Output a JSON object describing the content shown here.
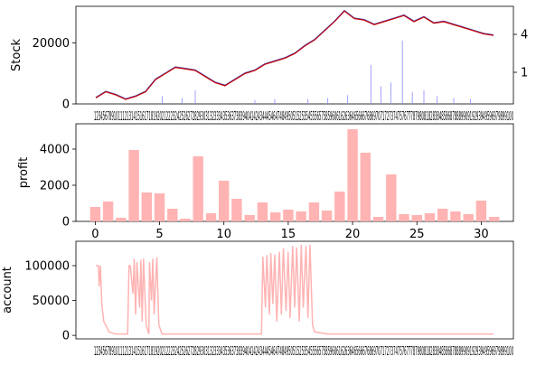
{
  "chart_data": [
    {
      "type": "line",
      "ylabel": "Stock",
      "ylim": [
        0,
        32000
      ],
      "yticks": [
        0,
        20000
      ],
      "y2ticks": [
        "4",
        "1"
      ],
      "x_tick_text": "123456789101112131415161718192021222324252627282930313233343536373839404142434445464748495051525354555657585960616263646566676869707172737475767778798081828384858687888990919293949596979899100",
      "series": [
        {
          "color": "#cc0000",
          "x": [
            0,
            30,
            60,
            90,
            120,
            150,
            180,
            210,
            240,
            270,
            300,
            330,
            360,
            390,
            420,
            450,
            480,
            510,
            540,
            570,
            600,
            630,
            660,
            690,
            720,
            750,
            780,
            810,
            840,
            870,
            900,
            930,
            960,
            990,
            1020,
            1050,
            1080,
            1110,
            1140,
            1170,
            1200
          ],
          "values": [
            2000,
            4000,
            3000,
            1500,
            2500,
            4000,
            8000,
            10000,
            12000,
            11500,
            11000,
            9000,
            7000,
            6000,
            8000,
            10000,
            11000,
            13000,
            14000,
            15000,
            16500,
            19000,
            21000,
            24000,
            27000,
            30500,
            28000,
            27500,
            26000,
            27000,
            28000,
            29000,
            27000,
            28500,
            26500,
            27000,
            26000,
            25000,
            24000,
            23000,
            22500
          ]
        }
      ],
      "volume_color": "#8888ff",
      "volume_ylim": [
        0,
        100
      ],
      "volume": [
        {
          "x": 200,
          "v": 8
        },
        {
          "x": 260,
          "v": 6
        },
        {
          "x": 300,
          "v": 14
        },
        {
          "x": 480,
          "v": 4
        },
        {
          "x": 540,
          "v": 5
        },
        {
          "x": 640,
          "v": 5
        },
        {
          "x": 700,
          "v": 6
        },
        {
          "x": 760,
          "v": 9
        },
        {
          "x": 830,
          "v": 40
        },
        {
          "x": 860,
          "v": 18
        },
        {
          "x": 890,
          "v": 22
        },
        {
          "x": 925,
          "v": 65
        },
        {
          "x": 955,
          "v": 12
        },
        {
          "x": 990,
          "v": 14
        },
        {
          "x": 1030,
          "v": 8
        },
        {
          "x": 1080,
          "v": 6
        },
        {
          "x": 1130,
          "v": 5
        }
      ]
    },
    {
      "type": "bar",
      "ylabel": "profit",
      "ylim": [
        0,
        5400
      ],
      "yticks": [
        0,
        2000,
        4000
      ],
      "xticks": [
        0,
        5,
        10,
        15,
        20,
        25,
        30
      ],
      "color": "#ffb3b3",
      "x": [
        0,
        1,
        2,
        3,
        4,
        5,
        6,
        7,
        8,
        9,
        10,
        11,
        12,
        13,
        14,
        15,
        16,
        17,
        18,
        19,
        20,
        21,
        22,
        23,
        24,
        25,
        26,
        27,
        28,
        29,
        30,
        31
      ],
      "values": [
        800,
        1100,
        200,
        3950,
        1600,
        1550,
        700,
        150,
        3600,
        450,
        2250,
        1250,
        350,
        1050,
        500,
        650,
        550,
        1050,
        600,
        1650,
        5100,
        3800,
        250,
        2600,
        400,
        350,
        450,
        700,
        550,
        400,
        1150,
        250
      ]
    },
    {
      "type": "line",
      "ylabel": "account",
      "ylim": [
        -5000,
        135000
      ],
      "yticks": [
        0,
        50000,
        100000
      ],
      "color": "#ffb3b3",
      "x_tick_text": "123456789101112131415161718192021222324252627282930313233343536373839404142434445464748495051525354555657585960616263646566676869707172737475767778798081828384858687888990919293949596979899100",
      "x": [
        0,
        8,
        10,
        14,
        18,
        24,
        40,
        60,
        96,
        100,
        104,
        112,
        116,
        120,
        124,
        132,
        136,
        140,
        144,
        152,
        160,
        162,
        168,
        172,
        176,
        184,
        190,
        200,
        320,
        500,
        504,
        512,
        516,
        524,
        528,
        534,
        540,
        546,
        554,
        560,
        566,
        574,
        580,
        586,
        594,
        600,
        606,
        614,
        620,
        626,
        634,
        640,
        646,
        654,
        660,
        700,
        1200
      ],
      "values": [
        100000,
        100000,
        70000,
        100000,
        45000,
        20000,
        5000,
        2000,
        2000,
        100000,
        100000,
        60000,
        110000,
        30000,
        105000,
        40000,
        108000,
        20000,
        110000,
        15000,
        2000,
        105000,
        50000,
        110000,
        30000,
        112000,
        15000,
        2000,
        2000,
        2000,
        113000,
        40000,
        115000,
        30000,
        118000,
        45000,
        116000,
        20000,
        120000,
        30000,
        125000,
        35000,
        120000,
        25000,
        128000,
        40000,
        126000,
        20000,
        130000,
        40000,
        128000,
        25000,
        130000,
        15000,
        5000,
        2000,
        2000
      ]
    }
  ]
}
